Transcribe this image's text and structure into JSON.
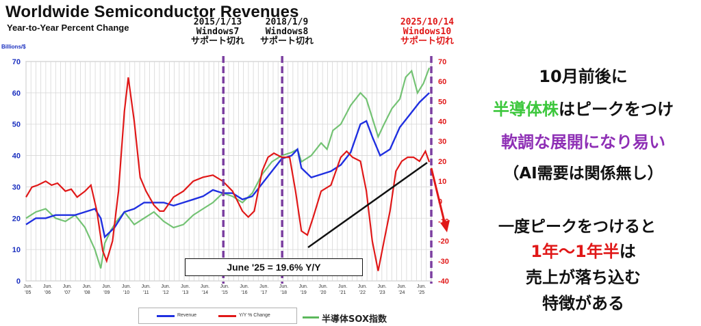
{
  "title": "Worldwide Semiconductor Revenues",
  "subtitle": "Year-to-Year Percent Change",
  "ylabel_left": "Billions/$",
  "annotations": [
    {
      "date": "2015/1/13",
      "os": "Windows7",
      "note": "サポート切れ"
    },
    {
      "date": "2018/1/9",
      "os": "Windows8",
      "note": "サポート切れ"
    },
    {
      "date": "2025/10/14",
      "os": "Windows10",
      "note": "サポート切れ"
    }
  ],
  "june_box": "June '25 = 19.6% Y/Y",
  "legend": {
    "revenue": "Revenue",
    "yoy": "Y/Y % Change",
    "sox": "半導体SOX指数"
  },
  "commentary": {
    "line1": "10月前後に",
    "line2a": "半導体株",
    "line2b": "はピークをつけ",
    "line3": "軟調な展開になり易い",
    "line4": "（AI需要は関係無し）",
    "line5": "一度ピークをつけると",
    "line6a": "1年〜1年半",
    "line6b": "は",
    "line7": "売上が落ち込む",
    "line8": "特徴がある"
  },
  "colors": {
    "revenue": "#1f2fe0",
    "yoy": "#e01818",
    "sox": "#5cb85c",
    "marker": "#7b3fa0",
    "highlight_green": "#3cc73c",
    "highlight_purple": "#8e2fb5",
    "highlight_red": "#e01818"
  },
  "chart_data": {
    "type": "line",
    "title": "Worldwide Semiconductor Revenues",
    "subtitle": "Year-to-Year Percent Change",
    "ylabel": "Billions/$",
    "y_left": {
      "min": 0,
      "max": 70,
      "ticks": [
        "0",
        "10",
        "20",
        "30",
        "40",
        "50",
        "60",
        "70"
      ]
    },
    "y_right": {
      "min": -40,
      "max": 70,
      "ticks": [
        "-40",
        "-30",
        "-20",
        "-10",
        "0",
        "10",
        "20",
        "30",
        "40",
        "50",
        "60",
        "70"
      ]
    },
    "x_ticks": [
      [
        "Jun.",
        "'05"
      ],
      [
        "Jun.",
        "'06"
      ],
      [
        "Jun.",
        "'07"
      ],
      [
        "Jun.",
        "'08"
      ],
      [
        "Jun.",
        "'09"
      ],
      [
        "Jun.",
        "'10"
      ],
      [
        "Jun.",
        "'11"
      ],
      [
        "Jun.",
        "'12"
      ],
      [
        "Jun.",
        "'13"
      ],
      [
        "Jun.",
        "'14"
      ],
      [
        "Jun.",
        "'15"
      ],
      [
        "Jun.",
        "'16"
      ],
      [
        "Jun.",
        "'17"
      ],
      [
        "Jun.",
        "'18"
      ],
      [
        "Jun.",
        "'19"
      ],
      [
        "Jun.",
        "'20"
      ],
      [
        "Jun.",
        "'21"
      ],
      [
        "Jun.",
        "'22"
      ],
      [
        "Jun.",
        "'23"
      ],
      [
        "Jun.",
        "'24"
      ],
      [
        "Jun.",
        "'25"
      ]
    ],
    "series": [
      {
        "name": "Revenue",
        "axis": "left",
        "x": [
          2005.0,
          2005.5,
          2006.0,
          2006.5,
          2007.0,
          2007.5,
          2008.0,
          2008.5,
          2008.8,
          2009.0,
          2009.5,
          2010.0,
          2010.5,
          2011.0,
          2011.5,
          2012.0,
          2012.5,
          2013.0,
          2013.5,
          2014.0,
          2014.5,
          2015.0,
          2015.5,
          2016.0,
          2016.5,
          2017.0,
          2017.5,
          2018.0,
          2018.5,
          2018.8,
          2019.0,
          2019.5,
          2020.0,
          2020.5,
          2021.0,
          2021.5,
          2022.0,
          2022.3,
          2022.6,
          2023.0,
          2023.5,
          2024.0,
          2024.5,
          2025.0,
          2025.5
        ],
        "y": [
          18,
          20,
          20,
          21,
          21,
          21,
          22,
          23,
          20,
          14,
          17,
          22,
          23,
          25,
          25,
          25,
          24,
          25,
          26,
          27,
          29,
          28,
          28,
          26,
          27,
          31,
          35,
          39,
          40,
          42,
          36,
          33,
          34,
          35,
          37,
          41,
          50,
          51,
          46,
          40,
          42,
          49,
          53,
          57,
          60
        ]
      },
      {
        "name": "Y/Y % Change",
        "axis": "right",
        "x": [
          2005.0,
          2005.3,
          2005.6,
          2006.0,
          2006.3,
          2006.6,
          2007.0,
          2007.3,
          2007.6,
          2008.0,
          2008.3,
          2008.6,
          2008.9,
          2009.1,
          2009.4,
          2009.7,
          2010.0,
          2010.2,
          2010.5,
          2010.8,
          2011.1,
          2011.5,
          2011.8,
          2012.0,
          2012.5,
          2013.0,
          2013.5,
          2014.0,
          2014.5,
          2015.0,
          2015.5,
          2016.0,
          2016.3,
          2016.6,
          2017.0,
          2017.3,
          2017.6,
          2018.0,
          2018.4,
          2018.7,
          2019.0,
          2019.3,
          2019.6,
          2020.0,
          2020.5,
          2021.0,
          2021.3,
          2021.6,
          2022.0,
          2022.3,
          2022.6,
          2022.9,
          2023.2,
          2023.5,
          2023.8,
          2024.1,
          2024.4,
          2024.7,
          2025.0,
          2025.3,
          2025.5
        ],
        "y": [
          2,
          7,
          8,
          10,
          8,
          9,
          5,
          6,
          2,
          5,
          8,
          -5,
          -25,
          -30,
          -20,
          5,
          45,
          62,
          40,
          12,
          5,
          -2,
          -5,
          -5,
          2,
          5,
          10,
          12,
          13,
          10,
          5,
          -5,
          -8,
          -5,
          15,
          22,
          24,
          22,
          22,
          5,
          -15,
          -17,
          -8,
          5,
          8,
          22,
          25,
          22,
          20,
          5,
          -20,
          -35,
          -20,
          -5,
          15,
          20,
          22,
          22,
          20,
          25,
          19.6
        ]
      },
      {
        "name": "半導体SOX指数",
        "axis": "left",
        "x": [
          2005.0,
          2005.5,
          2006.0,
          2006.5,
          2007.0,
          2007.5,
          2008.0,
          2008.5,
          2008.8,
          2009.0,
          2009.3,
          2009.6,
          2010.0,
          2010.5,
          2011.0,
          2011.5,
          2012.0,
          2012.5,
          2013.0,
          2013.5,
          2014.0,
          2014.5,
          2015.0,
          2015.5,
          2016.0,
          2016.5,
          2017.0,
          2017.5,
          2018.0,
          2018.5,
          2018.8,
          2019.0,
          2019.5,
          2020.0,
          2020.3,
          2020.6,
          2021.0,
          2021.5,
          2022.0,
          2022.3,
          2022.6,
          2022.9,
          2023.2,
          2023.6,
          2024.0,
          2024.3,
          2024.6,
          2024.9,
          2025.2,
          2025.5
        ],
        "y": [
          20,
          22,
          23,
          20,
          19,
          21,
          17,
          10,
          4,
          12,
          16,
          19,
          22,
          18,
          20,
          22,
          19,
          17,
          18,
          21,
          23,
          25,
          28,
          27,
          25,
          28,
          34,
          38,
          40,
          41,
          42,
          38,
          40,
          44,
          42,
          48,
          50,
          56,
          60,
          58,
          52,
          46,
          50,
          55,
          58,
          65,
          67,
          60,
          63,
          68
        ]
      }
    ]
  }
}
